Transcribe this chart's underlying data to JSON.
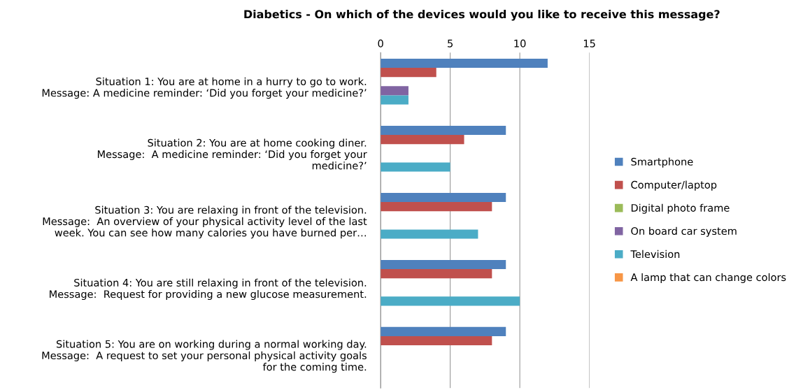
{
  "chart_data": {
    "type": "bar",
    "orientation": "horizontal",
    "title": "Diabetics - On which of the devices would you like to receive this message?",
    "categories": [
      "Situation 1: You are at home in a hurry to go to work.\nMessage: A medicine reminder: ‘Did you forget your medicine?’",
      "Situation 2: You are at home cooking diner.\nMessage:  A medicine reminder: ‘Did you forget your\nmedicine?’",
      "Situation 3: You are relaxing in front of the television.\nMessage:  An overview of your physical activity level of the last\nweek. You can see how many calories you have burned per…",
      "Situation 4: You are still relaxing in front of the television.\nMessage:  Request for providing a new glucose measurement.",
      "Situation 5: You are on working during a normal working day.\nMessage:  A request to set your personal physical activity goals\nfor the coming time."
    ],
    "series": [
      {
        "name": "Smartphone",
        "color": "#4f81bd",
        "values": [
          12,
          9,
          9,
          9,
          9
        ]
      },
      {
        "name": "Computer/laptop",
        "color": "#c0504d",
        "values": [
          4,
          6,
          8,
          8,
          8
        ]
      },
      {
        "name": "Digital photo frame",
        "color": "#9bbb59",
        "values": [
          0,
          0,
          0,
          0,
          0
        ]
      },
      {
        "name": "On board car system",
        "color": "#8064a2",
        "values": [
          2,
          0,
          0,
          0,
          0
        ]
      },
      {
        "name": "Television",
        "color": "#4bacc6",
        "values": [
          2,
          5,
          7,
          10,
          0
        ]
      },
      {
        "name": "A lamp that can change colors",
        "color": "#f79646",
        "values": [
          0,
          0,
          0,
          0,
          0
        ]
      }
    ],
    "xlim": [
      0,
      15
    ],
    "xticks": [
      0,
      5,
      10,
      15
    ],
    "grid": "x",
    "legend": "right"
  }
}
